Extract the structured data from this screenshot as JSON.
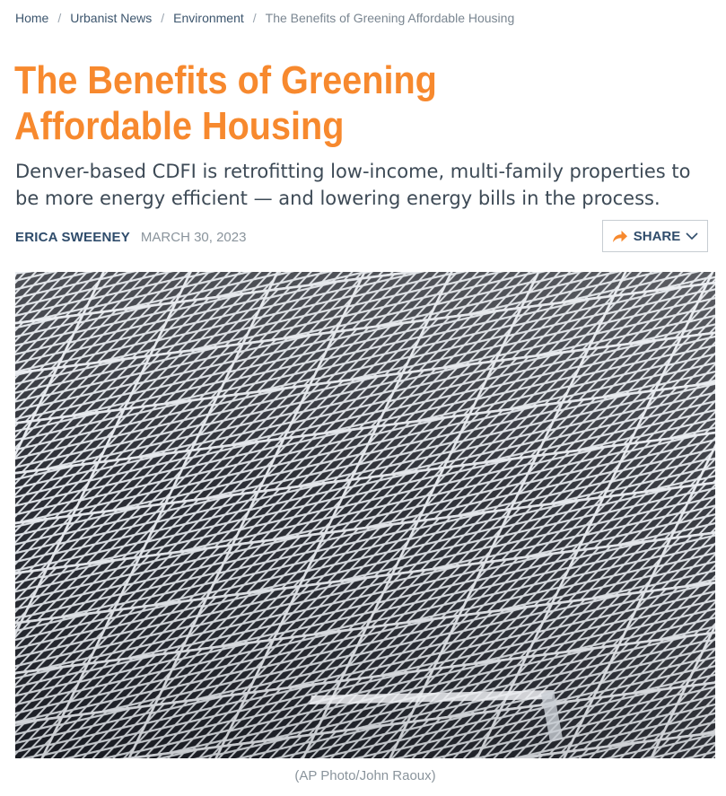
{
  "breadcrumb": {
    "items": [
      {
        "label": "Home"
      },
      {
        "label": "Urbanist News"
      },
      {
        "label": "Environment"
      }
    ],
    "separator": "/",
    "current": "The Benefits of Greening Affordable Housing"
  },
  "article": {
    "title": "The Benefits of Greening Affordable Housing",
    "subtitle": "Denver-based CDFI is retrofitting low-income, multi-family properties to be more energy efficient — and lowering energy bills in the process.",
    "author": "ERICA SWEENEY",
    "date": "MARCH 30, 2023",
    "share_label": "SHARE",
    "share_icon": "share-arrow-icon",
    "share_menu_icon": "chevron-down-icon",
    "image_caption": "(AP Photo/John Raoux)",
    "hero_image": "solar-panels-photo"
  },
  "colors": {
    "title": "#f7892e",
    "accent_icon": "#f7892e",
    "author": "#2f4c6b",
    "muted": "#8a949c",
    "panel_cell": "#1c1f27",
    "panel_grid": "#d9dde2"
  }
}
